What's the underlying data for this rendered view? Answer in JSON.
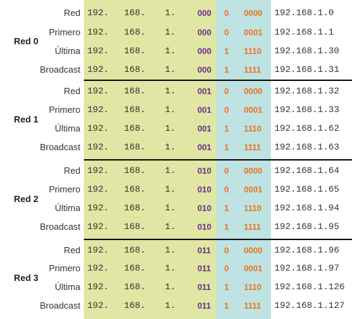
{
  "networks": [
    {
      "name": "Red 0",
      "rows": [
        {
          "label": "Red",
          "o1": "192.",
          "o2": "168.",
          "o3": "1.",
          "subnet": "000",
          "bit": "0",
          "host": "0000",
          "address": "192.168.1.0"
        },
        {
          "label": "Primero",
          "o1": "192.",
          "o2": "168.",
          "o3": "1.",
          "subnet": "000",
          "bit": "0",
          "host": "0001",
          "address": "192.168.1.1"
        },
        {
          "label": "Última",
          "o1": "192.",
          "o2": "168.",
          "o3": "1.",
          "subnet": "000",
          "bit": "1",
          "host": "1110",
          "address": "192.168.1.30"
        },
        {
          "label": "Broadcast",
          "o1": "192.",
          "o2": "168.",
          "o3": "1.",
          "subnet": "000",
          "bit": "1",
          "host": "1111",
          "address": "192.168.1.31"
        }
      ]
    },
    {
      "name": "Red 1",
      "rows": [
        {
          "label": "Red",
          "o1": "192.",
          "o2": "168.",
          "o3": "1.",
          "subnet": "001",
          "bit": "0",
          "host": "0000",
          "address": "192.168.1.32"
        },
        {
          "label": "Primero",
          "o1": "192.",
          "o2": "168.",
          "o3": "1.",
          "subnet": "001",
          "bit": "0",
          "host": "0001",
          "address": "192.168.1.33"
        },
        {
          "label": "Última",
          "o1": "192.",
          "o2": "168.",
          "o3": "1.",
          "subnet": "001",
          "bit": "1",
          "host": "1110",
          "address": "192.168.1.62"
        },
        {
          "label": "Broadcast",
          "o1": "192.",
          "o2": "168.",
          "o3": "1.",
          "subnet": "001",
          "bit": "1",
          "host": "1111",
          "address": "192.168.1.63"
        }
      ]
    },
    {
      "name": "Red 2",
      "rows": [
        {
          "label": "Red",
          "o1": "192.",
          "o2": "168.",
          "o3": "1.",
          "subnet": "010",
          "bit": "0",
          "host": "0000",
          "address": "192.168.1.64"
        },
        {
          "label": "Primero",
          "o1": "192.",
          "o2": "168.",
          "o3": "1.",
          "subnet": "010",
          "bit": "0",
          "host": "0001",
          "address": "192.168.1.65"
        },
        {
          "label": "Última",
          "o1": "192.",
          "o2": "168.",
          "o3": "1.",
          "subnet": "010",
          "bit": "1",
          "host": "1110",
          "address": "192.168.1.94"
        },
        {
          "label": "Broadcast",
          "o1": "192.",
          "o2": "168.",
          "o3": "1.",
          "subnet": "010",
          "bit": "1",
          "host": "1111",
          "address": "192.168.1.95"
        }
      ]
    },
    {
      "name": "Red 3",
      "rows": [
        {
          "label": "Red",
          "o1": "192.",
          "o2": "168.",
          "o3": "1.",
          "subnet": "011",
          "bit": "0",
          "host": "0000",
          "address": "192.168.1.96"
        },
        {
          "label": "Primero",
          "o1": "192.",
          "o2": "168.",
          "o3": "1.",
          "subnet": "011",
          "bit": "0",
          "host": "0001",
          "address": "192.168.1.97"
        },
        {
          "label": "Última",
          "o1": "192.",
          "o2": "168.",
          "o3": "1.",
          "subnet": "011",
          "bit": "1",
          "host": "1110",
          "address": "192.168.1.126"
        },
        {
          "label": "Broadcast",
          "o1": "192.",
          "o2": "168.",
          "o3": "1.",
          "subnet": "011",
          "bit": "1",
          "host": "1111",
          "address": "192.168.1.127"
        }
      ]
    }
  ],
  "colors": {
    "network_fill": "#e0e6a3",
    "host_fill": "#bfe3e3",
    "subnet_bits": "#6a2c8a",
    "host_bits": "#e8731f"
  }
}
